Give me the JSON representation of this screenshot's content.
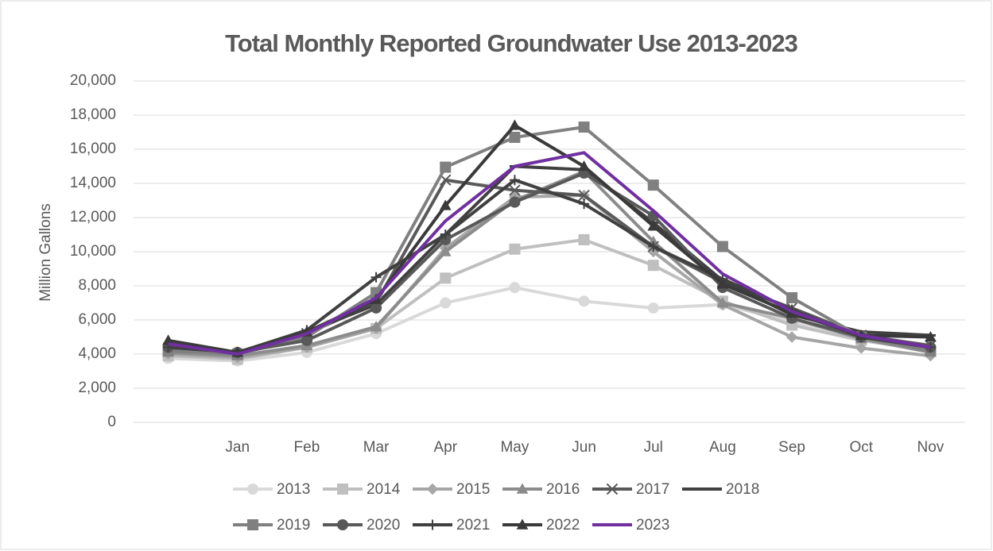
{
  "chart_data": {
    "type": "line",
    "title": "Total Monthly Reported Groundwater Use 2013-2023",
    "y_label": "Million Gallons",
    "categories": [
      null,
      "Jan",
      "Feb",
      "Mar",
      "Apr",
      "May",
      "Jun",
      "Jul",
      "Aug",
      "Sep",
      "Oct",
      "Nov"
    ],
    "ylim": [
      0,
      20000
    ],
    "yticks": [
      0,
      {
        "value": 2000,
        "label": "2,000"
      },
      {
        "value": 4000,
        "label": "4,000"
      },
      {
        "value": 6000,
        "label": "6,000"
      },
      {
        "value": 8000,
        "label": "8,000"
      },
      {
        "value": 10000,
        "label": "10,000"
      },
      {
        "value": 12000,
        "label": "12,000"
      },
      {
        "value": 14000,
        "label": "14,000"
      },
      {
        "value": 16000,
        "label": "16,000"
      },
      {
        "value": 18000,
        "label": "18,000"
      },
      {
        "value": 20000,
        "label": "20,000"
      }
    ],
    "grid": true,
    "legend": "bottom",
    "series": [
      {
        "name": "2013",
        "color": "#d9d9d9",
        "marker": "circle",
        "values": [
          3750,
          3600,
          4100,
          5200,
          7000,
          7900,
          7100,
          6700,
          6900,
          5900,
          4800,
          4300
        ]
      },
      {
        "name": "2014",
        "color": "#bfbfbf",
        "marker": "square",
        "values": [
          3900,
          3700,
          4400,
          5500,
          8450,
          10150,
          10700,
          9200,
          7100,
          5700,
          4800,
          4200
        ]
      },
      {
        "name": "2015",
        "color": "#a6a6a6",
        "marker": "diamond",
        "values": [
          4000,
          3800,
          4400,
          5500,
          10200,
          13200,
          13300,
          10000,
          6900,
          5000,
          4350,
          3900
        ]
      },
      {
        "name": "2016",
        "color": "#8c8c8c",
        "marker": "triangle",
        "values": [
          4100,
          3900,
          4500,
          5600,
          10000,
          13000,
          14700,
          10600,
          7000,
          6100,
          4900,
          4100
        ]
      },
      {
        "name": "2017",
        "color": "#595959",
        "marker": "x",
        "values": [
          4300,
          4000,
          5200,
          7000,
          14200,
          13600,
          13300,
          10300,
          8200,
          6700,
          5100,
          4500
        ]
      },
      {
        "name": "2018",
        "color": "#404040",
        "marker": "dash",
        "values": [
          4600,
          4100,
          5300,
          6900,
          11000,
          15000,
          14800,
          11700,
          8300,
          6300,
          5300,
          5100
        ]
      },
      {
        "name": "2019",
        "color": "#808080",
        "marker": "square",
        "values": [
          4200,
          4000,
          5000,
          7600,
          14950,
          16700,
          17300,
          13900,
          10300,
          7300,
          5000,
          4200
        ]
      },
      {
        "name": "2020",
        "color": "#595959",
        "marker": "circle",
        "values": [
          4400,
          4100,
          4800,
          6700,
          10700,
          12900,
          14600,
          12100,
          7900,
          6100,
          5000,
          4400
        ]
      },
      {
        "name": "2021",
        "color": "#404040",
        "marker": "plus",
        "values": [
          4400,
          4100,
          5400,
          8500,
          11000,
          14200,
          12800,
          10300,
          8400,
          6600,
          5000,
          4400
        ]
      },
      {
        "name": "2022",
        "color": "#3a3a3a",
        "marker": "triangle",
        "values": [
          4800,
          4100,
          5300,
          7200,
          12700,
          17400,
          15000,
          11500,
          8100,
          6400,
          5100,
          5000
        ]
      },
      {
        "name": "2023",
        "color": "#7030a0",
        "values": [
          4600,
          4000,
          5200,
          7300,
          11800,
          15000,
          15800,
          12400,
          8700,
          6500,
          5100,
          4400
        ]
      }
    ]
  }
}
